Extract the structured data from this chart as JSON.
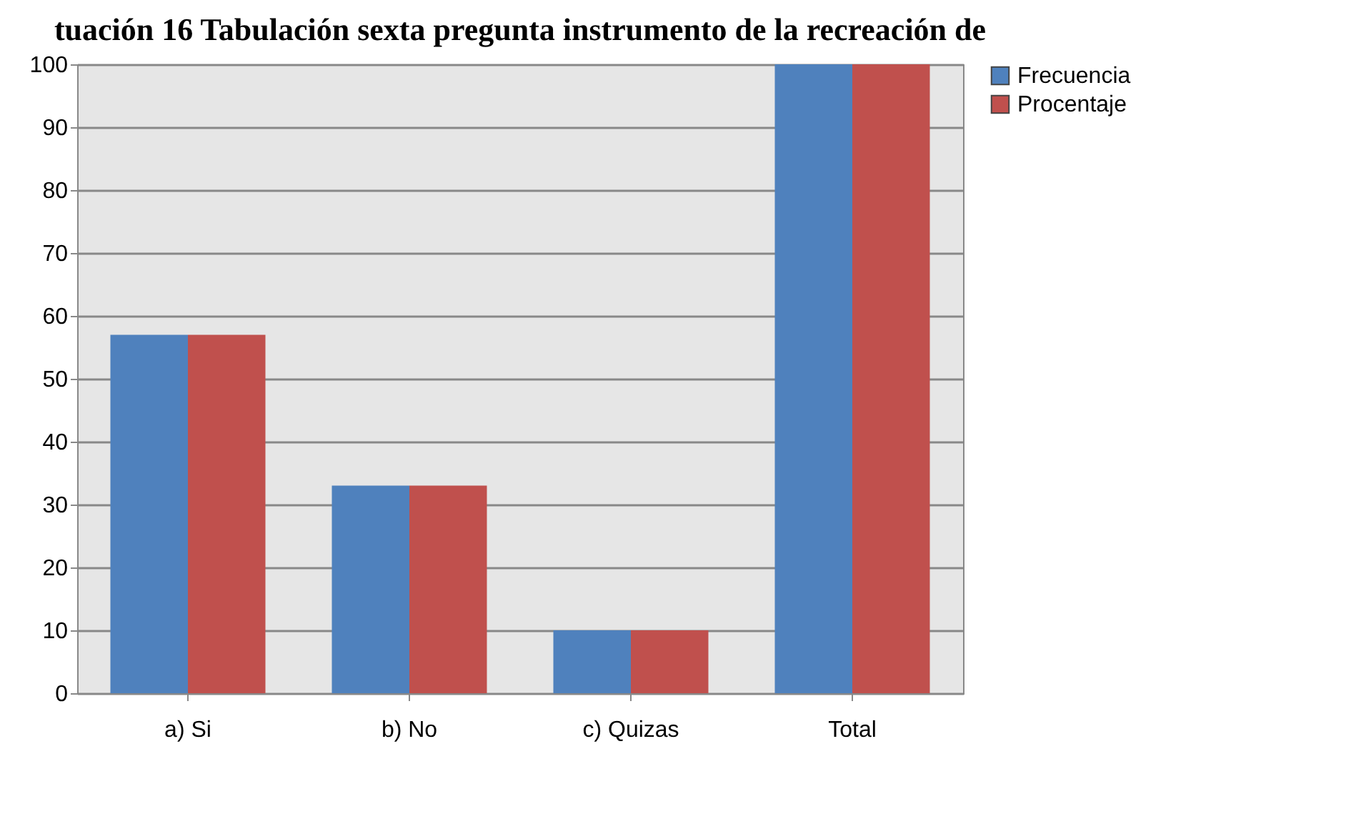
{
  "chart_data": {
    "type": "bar",
    "title": "tuación 16 Tabulación sexta pregunta instrumento de la recreación de",
    "categories": [
      "a)     Si",
      "b)     No",
      "c)      Quizas",
      "Total"
    ],
    "series": [
      {
        "name": "Frecuencia",
        "color": "#4f81bd",
        "values": [
          57,
          33,
          10,
          100
        ]
      },
      {
        "name": "Procentaje",
        "color": "#c0504d",
        "values": [
          57,
          33,
          10,
          100
        ]
      }
    ],
    "ylim": [
      0,
      100
    ],
    "yticks": [
      0,
      10,
      20,
      30,
      40,
      50,
      60,
      70,
      80,
      90,
      100
    ],
    "grid": "y",
    "legend": "right"
  }
}
